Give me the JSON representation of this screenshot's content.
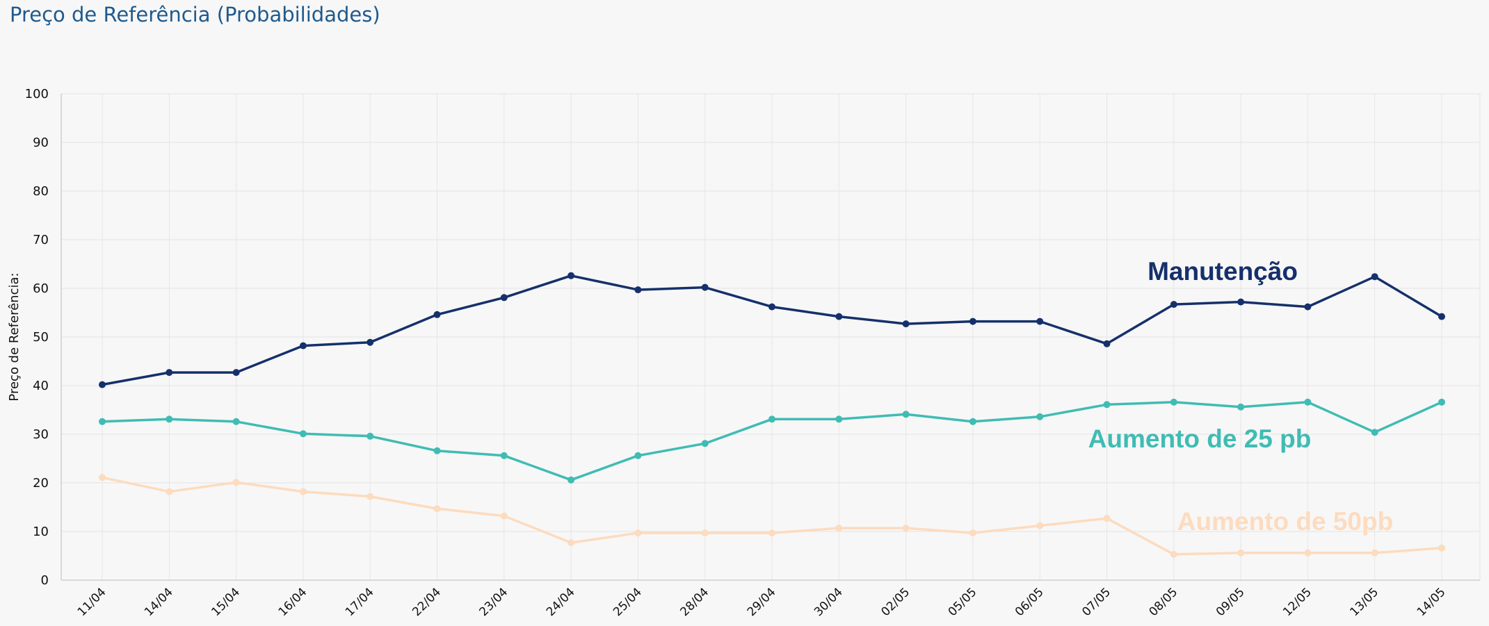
{
  "page": {
    "title": "Preço de Referência (Probabilidades)"
  },
  "chart_data": {
    "type": "line",
    "title": "Preço de Referência (Probabilidades)",
    "xlabel": "",
    "ylabel": "Preço de Referência:",
    "ylim": [
      0,
      100
    ],
    "yticks": [
      0,
      10,
      20,
      30,
      40,
      50,
      60,
      70,
      80,
      90,
      100
    ],
    "grid": true,
    "categories": [
      "11/04",
      "14/04",
      "15/04",
      "16/04",
      "17/04",
      "22/04",
      "23/04",
      "24/04",
      "25/04",
      "28/04",
      "29/04",
      "30/04",
      "02/05",
      "05/05",
      "06/05",
      "07/05",
      "08/05",
      "09/05",
      "12/05",
      "13/05",
      "14/05"
    ],
    "series": [
      {
        "name": "Manutenção",
        "color": "#15306b",
        "values": [
          40.2,
          42.7,
          42.7,
          48.2,
          48.9,
          54.6,
          58.1,
          62.6,
          59.7,
          60.2,
          56.2,
          54.2,
          52.7,
          53.2,
          53.2,
          48.6,
          56.7,
          57.2,
          56.2,
          62.4,
          54.2
        ]
      },
      {
        "name": "Aumento de 25 pb",
        "color": "#3fbcb3",
        "values": [
          32.6,
          33.1,
          32.6,
          30.1,
          29.6,
          26.6,
          25.6,
          20.6,
          25.6,
          28.1,
          33.1,
          33.1,
          34.1,
          32.6,
          33.6,
          36.1,
          36.6,
          35.6,
          36.6,
          30.4,
          36.6
        ]
      },
      {
        "name": "Aumento de 50pb",
        "color": "#fddbbe",
        "values": [
          21.1,
          18.2,
          20.1,
          18.2,
          17.2,
          14.7,
          13.2,
          7.7,
          9.7,
          9.7,
          9.7,
          10.7,
          10.7,
          9.7,
          11.2,
          12.7,
          5.3,
          5.6,
          5.6,
          5.6,
          6.6
        ]
      }
    ]
  }
}
